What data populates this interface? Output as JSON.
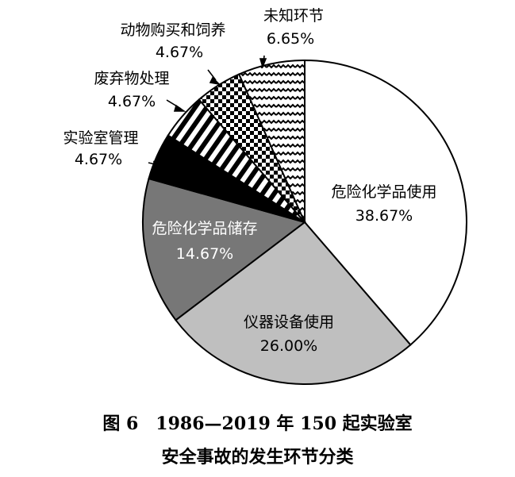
{
  "chart_data": {
    "type": "pie",
    "slices": [
      {
        "name": "危险化学品使用",
        "value": 38.67,
        "label": "38.67%",
        "color": "#ffffff",
        "pattern": "none"
      },
      {
        "name": "仪器设备使用",
        "value": 26.0,
        "label": "26.00%",
        "color": "#bfbfbf",
        "pattern": "none"
      },
      {
        "name": "危险化学品储存",
        "value": 14.67,
        "label": "14.67%",
        "color": "#777777",
        "pattern": "none"
      },
      {
        "name": "实验室管理",
        "value": 4.67,
        "label": "4.67%",
        "color": "#000000",
        "pattern": "none"
      },
      {
        "name": "废弃物处理",
        "value": 4.67,
        "label": "4.67%",
        "color": "#000000",
        "pattern": "diagonal-stripes"
      },
      {
        "name": "动物购买和饲养",
        "value": 4.67,
        "label": "4.67%",
        "color": "#000000",
        "pattern": "checker"
      },
      {
        "name": "未知环节",
        "value": 6.65,
        "label": "6.65%",
        "color": "#000000",
        "pattern": "zigzag"
      }
    ],
    "start": "top, clockwise"
  },
  "caption": {
    "line1": "图 6　1986—2019 年 150 起实验室",
    "line2": "安全事故的发生环节分类"
  }
}
